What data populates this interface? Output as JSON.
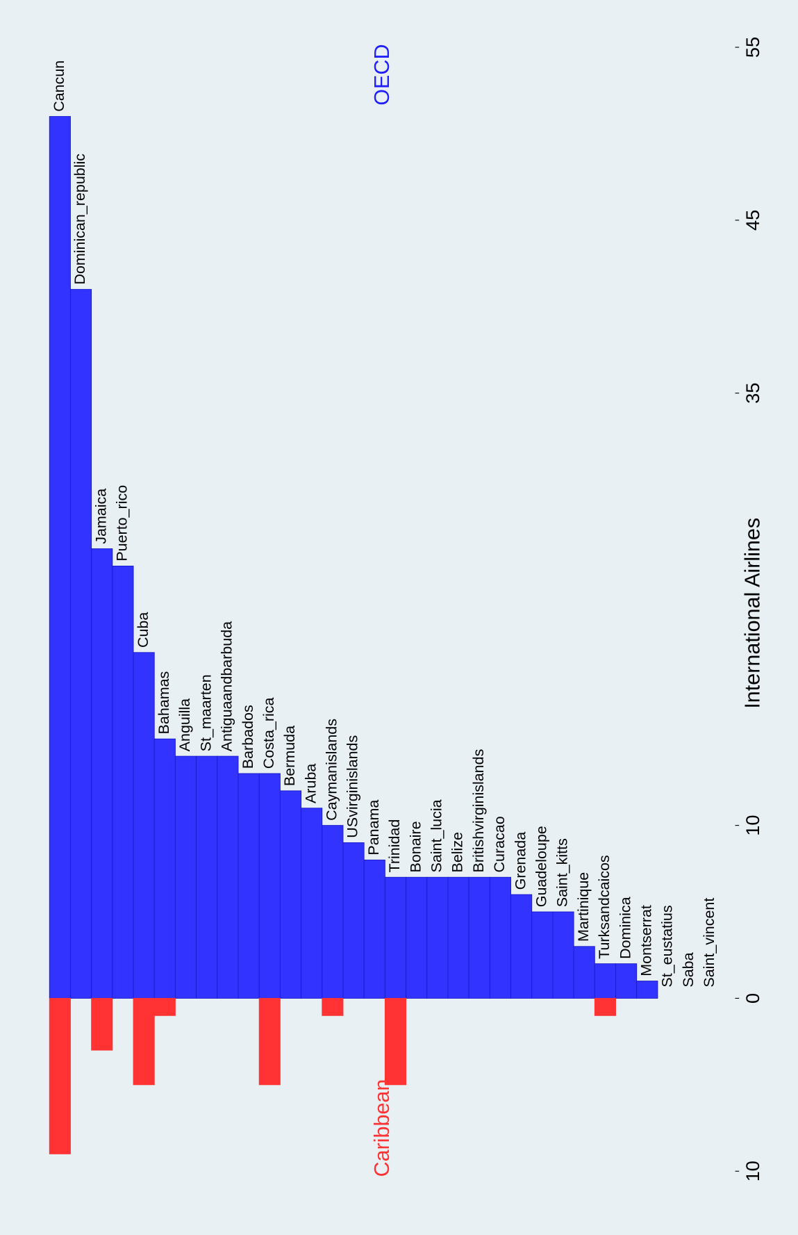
{
  "chart_data": {
    "type": "bar",
    "categories": [
      "Cancun",
      "Dominican_republic",
      "Jamaica",
      "Puerto_rico",
      "Cuba",
      "Bahamas",
      "Anguilla",
      "St_maarten",
      "Antiguaandbarbuda",
      "Barbados",
      "Costa_rica",
      "Bermuda",
      "Aruba",
      "Caymanislands",
      "USvirginislands",
      "Panama",
      "Trinidad",
      "Bonaire",
      "Saint_lucia",
      "Belize",
      "Britishvirginislands",
      "Curacao",
      "Grenada",
      "Guadeloupe",
      "Saint_kitts",
      "Martinique",
      "Turksandcaicos",
      "Dominica",
      "Montserrat",
      "St_eustatius",
      "Saba",
      "Saint_vincent"
    ],
    "series": [
      {
        "name": "OECD",
        "color": "#3333ff",
        "values": [
          51,
          41,
          26,
          25,
          20,
          15,
          14,
          14,
          14,
          13,
          13,
          12,
          11,
          10,
          9,
          8,
          7,
          7,
          7,
          7,
          7,
          7,
          6,
          5,
          5,
          3,
          2,
          2,
          1,
          0,
          0,
          0
        ]
      },
      {
        "name": "Caribbean",
        "color": "#ff3333",
        "values": [
          -9,
          0,
          -3,
          0,
          -5,
          -1,
          0,
          0,
          0,
          0,
          -5,
          0,
          0,
          -1,
          0,
          0,
          -5,
          0,
          0,
          0,
          0,
          0,
          0,
          0,
          0,
          0,
          -1,
          0,
          0,
          0,
          0,
          0
        ]
      }
    ],
    "y_label": "International Airlines",
    "ylim": [
      -12,
      57
    ],
    "yticks": [
      {
        "value": -10,
        "label": "10"
      },
      0,
      10,
      35,
      45,
      55
    ]
  }
}
